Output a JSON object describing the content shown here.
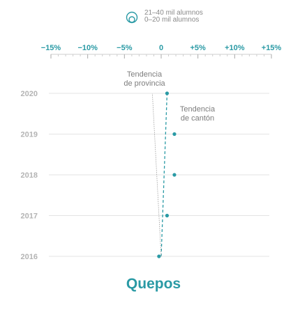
{
  "legend": {
    "line1": "21–40 mil alumnos",
    "line2": "0–20 mil alumnos",
    "icon": "nested-circles-icon"
  },
  "annotations": {
    "province_line1": "Tendencia",
    "province_line2": "de provincia",
    "canton_line1": "Tendencia",
    "canton_line2": "de cantón"
  },
  "chart_data": {
    "type": "scatter",
    "title": "Quepos",
    "x_tick_labels": [
      "−15%",
      "−10%",
      "−5%",
      "0",
      "+5%",
      "+10%",
      "+15%"
    ],
    "x_ticks": [
      -15,
      -10,
      -5,
      0,
      5,
      10,
      15
    ],
    "xlim": [
      -15,
      15
    ],
    "y_categories": [
      "2020",
      "2019",
      "2018",
      "2017",
      "2016"
    ],
    "series": [
      {
        "points": [
          {
            "year": "2016",
            "x": -0.3
          },
          {
            "year": "2017",
            "x": 0.8
          },
          {
            "year": "2018",
            "x": 1.8
          },
          {
            "year": "2019",
            "x": 1.8
          },
          {
            "year": "2020",
            "x": 0.8
          }
        ]
      }
    ],
    "trend_lines": [
      {
        "kind": "canton",
        "x_2016": 0.0,
        "x_2020": 0.8
      },
      {
        "kind": "province",
        "x_2016": 0.0,
        "x_2020": -1.2
      }
    ],
    "colors": {
      "accent": "#2a9aa5",
      "grid": "#e3e3e3",
      "label": "#b4b4b4",
      "province_line": "#9a9a9a"
    }
  }
}
